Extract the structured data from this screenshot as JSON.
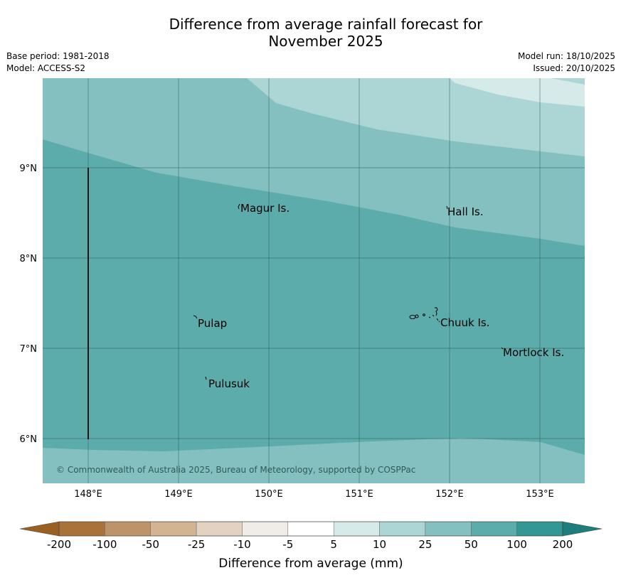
{
  "header": {
    "title_line1": "Difference from average rainfall forecast for",
    "title_line2": "November 2025",
    "base_period": "Base period: 1981-2018",
    "model": "Model: ACCESS-S2",
    "model_run": "Model run: 18/10/2025",
    "issued": "Issued: 20/10/2025"
  },
  "map": {
    "lat_labels": [
      "9°N",
      "8°N",
      "7°N",
      "6°N"
    ],
    "lon_labels": [
      "148°E",
      "149°E",
      "150°E",
      "151°E",
      "152°E",
      "153°E"
    ],
    "places": [
      {
        "name": "Magur Is."
      },
      {
        "name": "Hall Is."
      },
      {
        "name": "Pulap"
      },
      {
        "name": "Chuuk Is."
      },
      {
        "name": "Mortlock Is."
      },
      {
        "name": "Pulusuk"
      }
    ],
    "copyright": "© Commonwealth of Australia 2025, Bureau of Meteorology, supported by COSPPac",
    "colors": {
      "band_0_5": "#ffffff",
      "band_5_10": "#d6eaea",
      "band_10_25": "#acd5d5",
      "band_25_50": "#84c0bf",
      "band_50_100": "#5cacac",
      "band_100_200": "#339796"
    }
  },
  "colorbar": {
    "tick_labels": [
      "-200",
      "-100",
      "-50",
      "-25",
      "-10",
      "-5",
      "5",
      "10",
      "25",
      "50",
      "100",
      "200"
    ],
    "segment_colors": [
      "#aa723b",
      "#bf936a",
      "#d4b393",
      "#e4d2c1",
      "#f0ede8",
      "#ffffff",
      "#d6eaea",
      "#acd5d5",
      "#84c0bf",
      "#5cacac",
      "#339796"
    ],
    "low_extend_color": "#996024",
    "high_extend_color": "#1f7d7b",
    "label": "Difference from average (mm)"
  }
}
